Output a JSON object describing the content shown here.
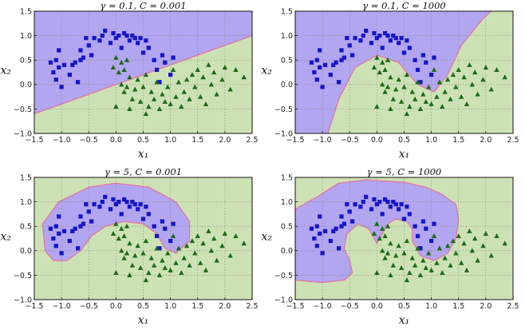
{
  "chart_data": [
    {
      "type": "scatter",
      "title": "γ = 0.1, C = 0.001",
      "xlabel": "x₁",
      "ylabel": "x₂",
      "xlim": [
        -1.5,
        2.5
      ],
      "ylim": [
        -1.0,
        1.5
      ],
      "xticks": [
        "−1.5",
        "−1.0",
        "−0.5",
        "0.0",
        "0.5",
        "1.0",
        "1.5",
        "2.0",
        "2.5"
      ],
      "yticks": [
        "−1.0",
        "−0.5",
        "0.0",
        "0.5",
        "1.0",
        "1.5"
      ],
      "grid": true,
      "boundary": [
        [
          -1.5,
          -0.6
        ],
        [
          2.5,
          1.0
        ]
      ]
    },
    {
      "type": "scatter",
      "title": "γ = 0.1, C = 1000",
      "xlabel": "x₁",
      "ylabel": "x₂",
      "xlim": [
        -1.5,
        2.5
      ],
      "ylim": [
        -1.0,
        1.5
      ],
      "xticks": [
        "−1.5",
        "−1.0",
        "−0.5",
        "0.0",
        "0.5",
        "1.0",
        "1.5",
        "2.0",
        "2.5"
      ],
      "yticks": [
        "−1.0",
        "−0.5",
        "0.0",
        "0.5",
        "1.0",
        "1.5"
      ],
      "grid": true,
      "boundary": [
        [
          -0.9,
          -1.0
        ],
        [
          -0.7,
          -0.3
        ],
        [
          -0.4,
          0.35
        ],
        [
          0.0,
          0.6
        ],
        [
          0.4,
          0.45
        ],
        [
          0.75,
          0.0
        ],
        [
          1.05,
          -0.15
        ],
        [
          1.3,
          0.2
        ],
        [
          1.55,
          0.8
        ],
        [
          1.95,
          1.35
        ],
        [
          2.1,
          1.5
        ]
      ]
    },
    {
      "type": "scatter",
      "title": "γ = 5, C = 0.001",
      "xlabel": "x₁",
      "ylabel": "x₂",
      "xlim": [
        -1.5,
        2.5
      ],
      "ylim": [
        -1.0,
        1.5
      ],
      "xticks": [
        "−1.5",
        "−1.0",
        "−0.5",
        "0.0",
        "0.5",
        "1.0",
        "1.5",
        "2.0",
        "2.5"
      ],
      "yticks": [
        "−1.0",
        "−0.5",
        "0.0",
        "0.5",
        "1.0",
        "1.5"
      ],
      "grid": true,
      "boundary": [
        [
          -1.3,
          0.0
        ],
        [
          -1.35,
          0.55
        ],
        [
          -1.05,
          1.0
        ],
        [
          -0.5,
          1.3
        ],
        [
          0.0,
          1.38
        ],
        [
          0.6,
          1.3
        ],
        [
          1.1,
          1.0
        ],
        [
          1.35,
          0.6
        ],
        [
          1.35,
          0.2
        ],
        [
          1.1,
          -0.05
        ],
        [
          0.9,
          0.05
        ],
        [
          0.75,
          0.35
        ],
        [
          0.5,
          0.55
        ],
        [
          0.15,
          0.6
        ],
        [
          -0.2,
          0.5
        ],
        [
          -0.45,
          0.3
        ],
        [
          -0.65,
          0.0
        ],
        [
          -0.9,
          -0.2
        ],
        [
          -1.15,
          -0.2
        ]
      ]
    },
    {
      "type": "scatter",
      "title": "γ = 5, C = 1000",
      "xlabel": "x₁",
      "ylabel": "x₂",
      "xlim": [
        -1.5,
        2.5
      ],
      "ylim": [
        -1.0,
        1.5
      ],
      "xticks": [
        "−1.5",
        "−1.0",
        "−0.5",
        "0.0",
        "0.5",
        "1.0",
        "1.5",
        "2.0",
        "2.5"
      ],
      "yticks": [
        "−1.0",
        "−0.5",
        "0.0",
        "0.5",
        "1.0",
        "1.5"
      ],
      "grid": true,
      "boundary": [
        [
          -1.5,
          0.85
        ],
        [
          -1.1,
          1.1
        ],
        [
          -0.7,
          1.38
        ],
        [
          -0.2,
          1.45
        ],
        [
          0.5,
          1.4
        ],
        [
          0.9,
          1.3
        ],
        [
          1.2,
          1.15
        ],
        [
          1.45,
          0.95
        ],
        [
          1.5,
          0.65
        ],
        [
          1.45,
          0.25
        ],
        [
          1.3,
          -0.05
        ],
        [
          1.05,
          -0.2
        ],
        [
          0.8,
          -0.1
        ],
        [
          0.65,
          0.2
        ],
        [
          0.65,
          0.45
        ],
        [
          0.55,
          0.6
        ],
        [
          0.35,
          0.65
        ],
        [
          0.2,
          0.55
        ],
        [
          0.1,
          0.35
        ],
        [
          0.0,
          0.15
        ],
        [
          -0.15,
          0.45
        ],
        [
          -0.35,
          0.55
        ],
        [
          -0.55,
          0.35
        ],
        [
          -0.6,
          0.05
        ],
        [
          -0.5,
          -0.2
        ],
        [
          -0.45,
          -0.45
        ],
        [
          -0.6,
          -0.6
        ],
        [
          -1.0,
          -0.65
        ],
        [
          -1.5,
          -0.6
        ]
      ]
    }
  ],
  "squares": [
    [
      -1.2,
      0.45
    ],
    [
      -1.15,
      0.25
    ],
    [
      -1.1,
      0.5
    ],
    [
      -1.05,
      0.35
    ],
    [
      -1.1,
      0.1
    ],
    [
      -1.0,
      -0.05
    ],
    [
      -0.95,
      0.4
    ],
    [
      -0.85,
      0.2
    ],
    [
      -0.8,
      0.4
    ],
    [
      -0.75,
      0.45
    ],
    [
      -0.7,
      0.05
    ],
    [
      -0.65,
      0.5
    ],
    [
      -0.65,
      0.7
    ],
    [
      -0.6,
      0.55
    ],
    [
      -0.55,
      0.95
    ],
    [
      -0.5,
      0.8
    ],
    [
      -0.4,
      0.95
    ],
    [
      -0.3,
      0.9
    ],
    [
      -0.25,
      1.0
    ],
    [
      -0.2,
      1.1
    ],
    [
      -0.1,
      0.85
    ],
    [
      -0.05,
      1.05
    ],
    [
      0.0,
      0.95
    ],
    [
      0.05,
      1.0
    ],
    [
      0.1,
      0.75
    ],
    [
      0.15,
      1.05
    ],
    [
      0.2,
      1.0
    ],
    [
      0.25,
      0.9
    ],
    [
      0.3,
      1.0
    ],
    [
      0.35,
      0.95
    ],
    [
      0.4,
      0.85
    ],
    [
      0.45,
      0.95
    ],
    [
      0.5,
      0.65
    ],
    [
      0.55,
      0.9
    ],
    [
      0.6,
      0.75
    ],
    [
      0.7,
      0.5
    ],
    [
      0.75,
      0.3
    ],
    [
      0.85,
      0.6
    ],
    [
      0.9,
      0.45
    ],
    [
      1.0,
      0.2
    ],
    [
      1.05,
      0.55
    ],
    [
      -1.05,
      0.7
    ],
    [
      -0.45,
      0.6
    ],
    [
      0.8,
      0.05
    ]
  ],
  "triangles": [
    [
      0.0,
      0.55
    ],
    [
      0.05,
      0.25
    ],
    [
      0.1,
      0.45
    ],
    [
      0.15,
      0.3
    ],
    [
      0.2,
      0.5
    ],
    [
      0.1,
      0.0
    ],
    [
      0.15,
      -0.15
    ],
    [
      0.2,
      -0.05
    ],
    [
      0.25,
      0.15
    ],
    [
      0.3,
      -0.3
    ],
    [
      0.35,
      -0.1
    ],
    [
      0.4,
      0.1
    ],
    [
      0.45,
      -0.35
    ],
    [
      0.5,
      -0.05
    ],
    [
      0.55,
      0.2
    ],
    [
      0.6,
      -0.45
    ],
    [
      0.65,
      -0.15
    ],
    [
      0.7,
      -0.3
    ],
    [
      0.75,
      0.05
    ],
    [
      0.8,
      -0.5
    ],
    [
      0.85,
      -0.2
    ],
    [
      0.9,
      -0.35
    ],
    [
      0.95,
      -0.05
    ],
    [
      1.0,
      -0.4
    ],
    [
      1.1,
      -0.25
    ],
    [
      1.15,
      0.05
    ],
    [
      1.2,
      -0.45
    ],
    [
      1.25,
      -0.15
    ],
    [
      1.3,
      0.1
    ],
    [
      1.35,
      -0.3
    ],
    [
      1.4,
      0.2
    ],
    [
      1.45,
      -0.05
    ],
    [
      1.5,
      0.3
    ],
    [
      1.55,
      -0.25
    ],
    [
      1.6,
      0.15
    ],
    [
      1.7,
      0.4
    ],
    [
      1.75,
      0.0
    ],
    [
      1.8,
      0.25
    ],
    [
      1.85,
      -0.2
    ],
    [
      1.95,
      0.1
    ],
    [
      2.0,
      0.35
    ],
    [
      2.1,
      -0.1
    ],
    [
      2.2,
      0.3
    ],
    [
      2.35,
      0.15
    ],
    [
      0.0,
      -0.45
    ],
    [
      -0.05,
      0.35
    ],
    [
      0.25,
      -0.5
    ],
    [
      0.55,
      -0.6
    ],
    [
      1.05,
      0.3
    ],
    [
      1.65,
      -0.4
    ]
  ],
  "colors": {
    "region_class_square": "#b3a6f0",
    "region_class_triangle": "#cde2b4",
    "boundary": "#e07aa8",
    "square_marker": "#1515c8",
    "triangle_marker": "#1b6b1b",
    "grid": "#888888"
  }
}
